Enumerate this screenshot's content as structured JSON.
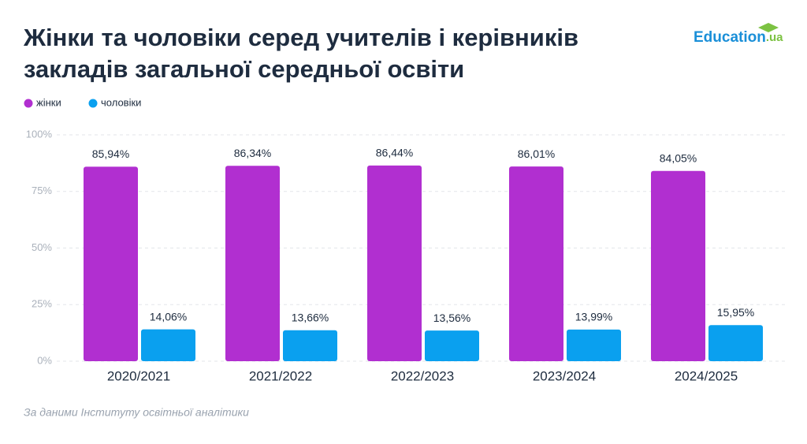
{
  "logo": {
    "main": "Education",
    "suffix": ".ua"
  },
  "source": "За даними Інституту освітньої аналітики",
  "chart_data": {
    "type": "bar",
    "title_lines": [
      "Жінки та чоловіки серед учителів і керівників",
      "закладів загальної середньої освіти"
    ],
    "categories": [
      "2020/2021",
      "2021/2022",
      "2022/2023",
      "2023/2024",
      "2024/2025"
    ],
    "series": [
      {
        "name": "жінки",
        "color": "#b12fd0",
        "values": [
          85.94,
          86.34,
          86.44,
          86.01,
          84.05
        ],
        "value_labels": [
          "85,94%",
          "86,34%",
          "86,44%",
          "86,01%",
          "84,05%"
        ]
      },
      {
        "name": "чоловіки",
        "color": "#0aa0ef",
        "values": [
          14.06,
          13.66,
          13.56,
          13.99,
          15.95
        ],
        "value_labels": [
          "14,06%",
          "13,66%",
          "13,56%",
          "13,99%",
          "15,95%"
        ]
      }
    ],
    "ylim": [
      0,
      100
    ],
    "yticks": [
      {
        "value": 0,
        "label": "0%"
      },
      {
        "value": 25,
        "label": "25%"
      },
      {
        "value": 50,
        "label": "50%"
      },
      {
        "value": 75,
        "label": "75%"
      },
      {
        "value": 100,
        "label": "100%"
      }
    ],
    "grid": true
  }
}
